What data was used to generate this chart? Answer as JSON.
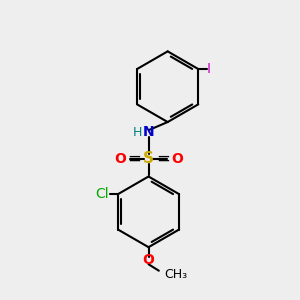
{
  "bg_color": "#eeeeee",
  "bond_color": "#000000",
  "bond_width": 1.5,
  "atom_colors": {
    "S": "#ccaa00",
    "O": "#ff0000",
    "N": "#0000cc",
    "H": "#008080",
    "Cl": "#00aa00",
    "I": "#cc00cc",
    "C": "#000000"
  },
  "font_size": 10,
  "fig_size": [
    3.0,
    3.0
  ],
  "dpi": 100
}
